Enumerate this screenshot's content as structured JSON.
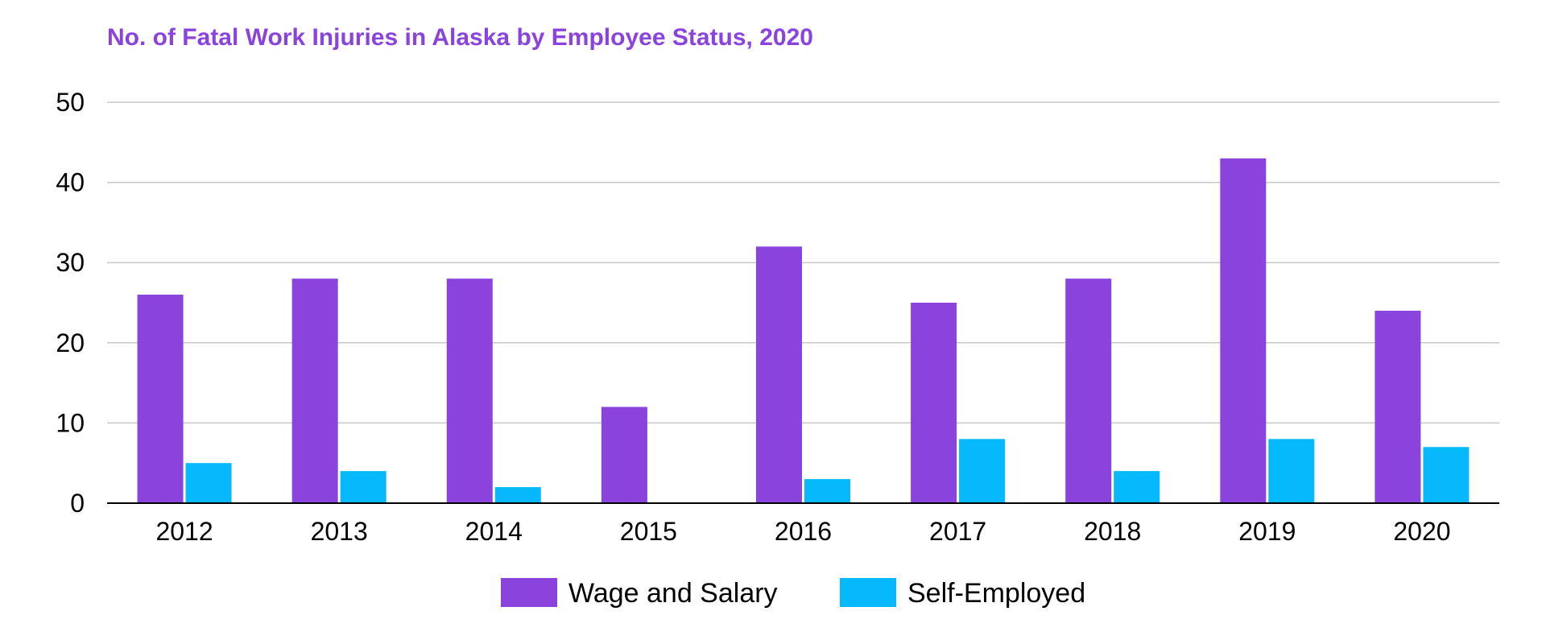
{
  "chart_data": {
    "type": "bar",
    "title": "No. of Fatal Work Injuries in Alaska by Employee Status, 2020",
    "xlabel": "",
    "ylabel": "",
    "categories": [
      "2012",
      "2013",
      "2014",
      "2015",
      "2016",
      "2017",
      "2018",
      "2019",
      "2020"
    ],
    "series": [
      {
        "name": "Wage and Salary",
        "color": "#8a43dc",
        "values": [
          26,
          28,
          28,
          12,
          32,
          25,
          28,
          43,
          24
        ]
      },
      {
        "name": "Self-Employed",
        "color": "#06b8fc",
        "values": [
          5,
          4,
          2,
          0,
          3,
          8,
          4,
          8,
          7
        ]
      }
    ],
    "ylim": [
      0,
      50
    ],
    "yticks": [
      0,
      10,
      20,
      30,
      40,
      50
    ],
    "grid": true,
    "legend": "bottom",
    "title_color": "#8a43dc",
    "grid_color": "#c8c8c8",
    "axis_color": "#000000"
  }
}
